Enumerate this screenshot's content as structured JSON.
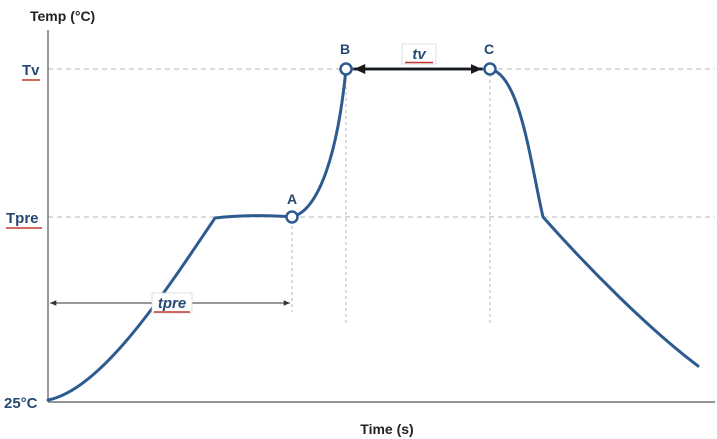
{
  "axes": {
    "ylabel": "Temp (°C)",
    "xlabel": "Time (s)"
  },
  "y_levels": [
    {
      "label": "Tv",
      "underline": true
    },
    {
      "label": "Tpre",
      "underline": true
    },
    {
      "label": "25°C",
      "underline": false
    }
  ],
  "points": [
    {
      "label": "A"
    },
    {
      "label": "B"
    },
    {
      "label": "C"
    }
  ],
  "intervals": {
    "tv": {
      "label": "tv",
      "from": "B",
      "to": "C"
    },
    "tpre": {
      "label": "tpre",
      "from": "start",
      "to": "A"
    }
  },
  "colors": {
    "curve": "#2e5b8f",
    "label": "#264a73",
    "underline": "#c0392b",
    "guide": "#b5b5b5",
    "axis": "#555555"
  }
}
